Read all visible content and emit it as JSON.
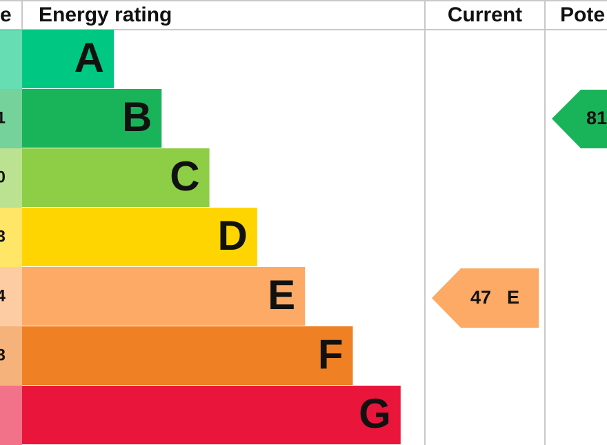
{
  "header": {
    "score": "e",
    "rating": "Energy rating",
    "current": "Current",
    "potential": "Pote"
  },
  "bands": [
    {
      "letter": "A",
      "color": "#00c781"
    },
    {
      "letter": "B",
      "score": "1",
      "color": "#19b459"
    },
    {
      "letter": "C",
      "score": "0",
      "color": "#8dce46"
    },
    {
      "letter": "D",
      "score": "3",
      "color": "#ffd500"
    },
    {
      "letter": "E",
      "score": "4",
      "color": "#fcaa65"
    },
    {
      "letter": "F",
      "score": "3",
      "color": "#ef8023"
    },
    {
      "letter": "G",
      "color": "#e9153b"
    }
  ],
  "current": {
    "value": 47,
    "band": "E",
    "color": "#fcaa65"
  },
  "potential": {
    "value": 81,
    "color": "#19b459"
  }
}
